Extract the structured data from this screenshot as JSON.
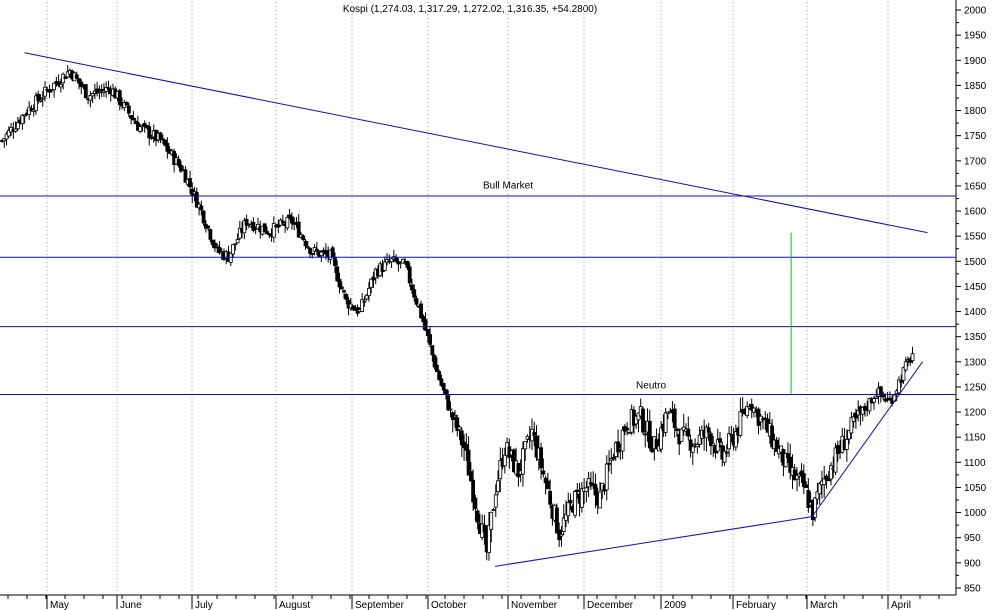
{
  "chart_data": {
    "type": "candlestick",
    "title": "Kospi (1,274.03, 1,317.29, 1,272.02, 1,316.35, +54.2800)",
    "ylim": [
      830,
      2010
    ],
    "y_ticks": [
      850,
      900,
      950,
      1000,
      1050,
      1100,
      1150,
      1200,
      1250,
      1300,
      1350,
      1400,
      1450,
      1500,
      1550,
      1600,
      1650,
      1700,
      1750,
      1800,
      1850,
      1900,
      1950,
      2000
    ],
    "x_ticks": [
      "May",
      "June",
      "July",
      "August",
      "September",
      "October",
      "November",
      "December",
      "2009",
      "February",
      "March",
      "April"
    ],
    "grid": "vertical dotted at month starts",
    "colors": {
      "candle": "#000000",
      "lines": "#1010b0",
      "marker": "#00cc00",
      "grid": "#9a9a9a",
      "frame": "#000000"
    },
    "anchor_points": [
      {
        "bar": 0,
        "close": 1740
      },
      {
        "bar": 10,
        "close": 1795
      },
      {
        "bar": 20,
        "close": 1840
      },
      {
        "bar": 30,
        "close": 1880
      },
      {
        "bar": 38,
        "close": 1830
      },
      {
        "bar": 48,
        "close": 1845
      },
      {
        "bar": 60,
        "close": 1770
      },
      {
        "bar": 70,
        "close": 1740
      },
      {
        "bar": 80,
        "close": 1680
      },
      {
        "bar": 88,
        "close": 1600
      },
      {
        "bar": 95,
        "close": 1520
      },
      {
        "bar": 100,
        "close": 1510
      },
      {
        "bar": 108,
        "close": 1580
      },
      {
        "bar": 118,
        "close": 1560
      },
      {
        "bar": 128,
        "close": 1580
      },
      {
        "bar": 137,
        "close": 1520
      },
      {
        "bar": 145,
        "close": 1510
      },
      {
        "bar": 152,
        "close": 1420
      },
      {
        "bar": 158,
        "close": 1400
      },
      {
        "bar": 165,
        "close": 1480
      },
      {
        "bar": 172,
        "close": 1500
      },
      {
        "bar": 178,
        "close": 1490
      },
      {
        "bar": 186,
        "close": 1380
      },
      {
        "bar": 192,
        "close": 1280
      },
      {
        "bar": 198,
        "close": 1200
      },
      {
        "bar": 204,
        "close": 1130
      },
      {
        "bar": 210,
        "close": 1000
      },
      {
        "bar": 214,
        "close": 920
      },
      {
        "bar": 218,
        "close": 1050
      },
      {
        "bar": 222,
        "close": 1130
      },
      {
        "bar": 228,
        "close": 1080
      },
      {
        "bar": 234,
        "close": 1160
      },
      {
        "bar": 240,
        "close": 1060
      },
      {
        "bar": 246,
        "close": 960
      },
      {
        "bar": 252,
        "close": 1020
      },
      {
        "bar": 258,
        "close": 1050
      },
      {
        "bar": 264,
        "close": 1030
      },
      {
        "bar": 270,
        "close": 1120
      },
      {
        "bar": 276,
        "close": 1180
      },
      {
        "bar": 282,
        "close": 1190
      },
      {
        "bar": 288,
        "close": 1130
      },
      {
        "bar": 294,
        "close": 1200
      },
      {
        "bar": 300,
        "close": 1150
      },
      {
        "bar": 306,
        "close": 1140
      },
      {
        "bar": 312,
        "close": 1160
      },
      {
        "bar": 318,
        "close": 1110
      },
      {
        "bar": 324,
        "close": 1160
      },
      {
        "bar": 330,
        "close": 1220
      },
      {
        "bar": 336,
        "close": 1180
      },
      {
        "bar": 342,
        "close": 1130
      },
      {
        "bar": 348,
        "close": 1080
      },
      {
        "bar": 354,
        "close": 1050
      },
      {
        "bar": 358,
        "close": 1000
      },
      {
        "bar": 362,
        "close": 1060
      },
      {
        "bar": 368,
        "close": 1110
      },
      {
        "bar": 374,
        "close": 1160
      },
      {
        "bar": 380,
        "close": 1200
      },
      {
        "bar": 386,
        "close": 1240
      },
      {
        "bar": 392,
        "close": 1220
      },
      {
        "bar": 398,
        "close": 1280
      },
      {
        "bar": 402,
        "close": 1316
      }
    ],
    "lines": [
      {
        "kind": "hline",
        "y": 1630,
        "x_from": 0,
        "x_to": 1
      },
      {
        "kind": "hline",
        "y": 1508,
        "x_from": 0,
        "x_to": 1
      },
      {
        "kind": "hline",
        "y": 1370,
        "x_from": 0,
        "x_to": 1
      },
      {
        "kind": "hline",
        "y": 1235,
        "x_from": 0,
        "x_to": 1
      },
      {
        "kind": "trend",
        "from": {
          "date": "2008-04-21",
          "y": 1915
        },
        "to": {
          "date": "2009-04-17",
          "y": 1557
        }
      },
      {
        "kind": "trend",
        "from": {
          "date": "2008-10-27",
          "y": 893
        },
        "to": {
          "date": "2009-03-03",
          "y": 992
        }
      },
      {
        "kind": "trend",
        "from": {
          "date": "2009-03-03",
          "y": 992
        },
        "to": {
          "date": "2009-04-15",
          "y": 1300
        }
      },
      {
        "kind": "vmarker",
        "date": "2009-02-23",
        "y_from": 1237,
        "y_to": 1557
      }
    ],
    "annotations": [
      {
        "text": "Bull Market",
        "date": "2008-11-01",
        "y": 1645
      },
      {
        "text": "Neutro",
        "date": "2008-12-28",
        "y": 1247
      }
    ]
  }
}
